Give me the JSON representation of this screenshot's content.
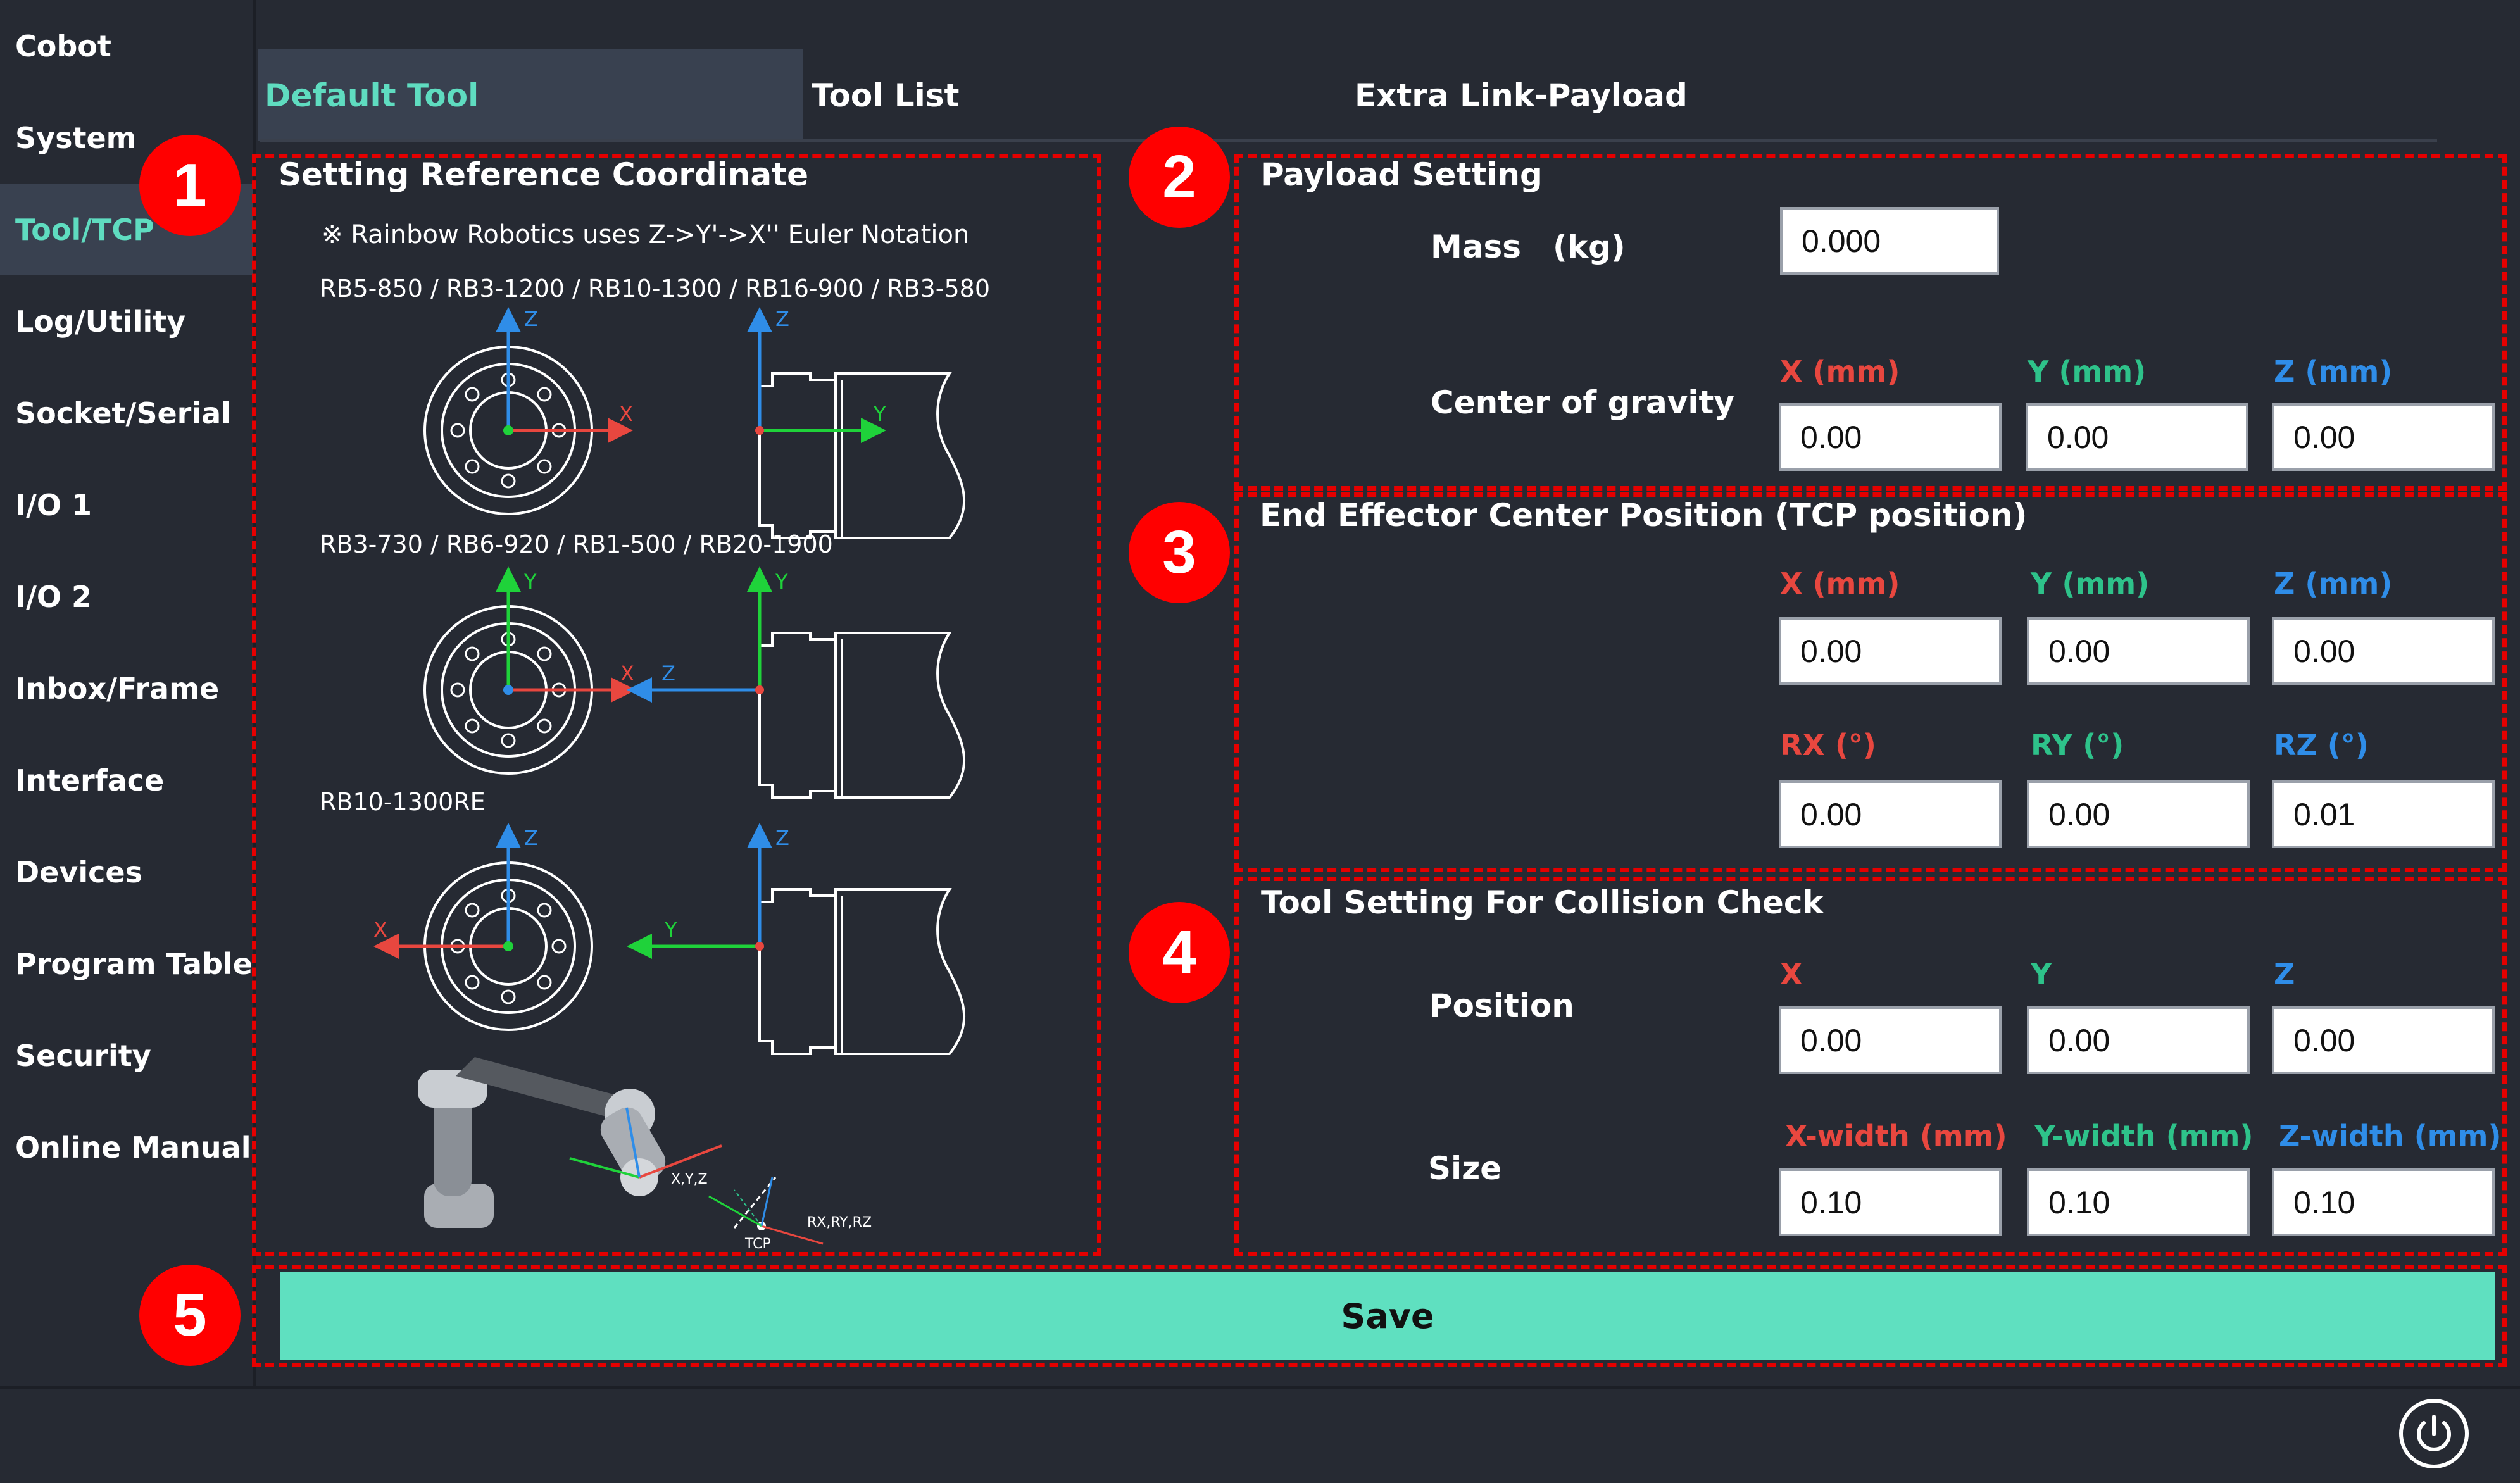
{
  "sidebar": {
    "items": [
      {
        "label": "Cobot"
      },
      {
        "label": "System"
      },
      {
        "label": "Tool/TCP"
      },
      {
        "label": "Log/Utility"
      },
      {
        "label": "Socket/Serial"
      },
      {
        "label": "I/O 1"
      },
      {
        "label": "I/O 2"
      },
      {
        "label": "Inbox/Frame"
      },
      {
        "label": "Interface"
      },
      {
        "label": "Devices"
      },
      {
        "label": "Program Table"
      },
      {
        "label": "Security"
      },
      {
        "label": "Online Manual"
      }
    ],
    "active_index": 2
  },
  "tabs": [
    {
      "label": "Default Tool"
    },
    {
      "label": "Tool List"
    },
    {
      "label": "Extra Link-Payload"
    }
  ],
  "markers": [
    "1",
    "2",
    "3",
    "4",
    "5"
  ],
  "reference": {
    "title": "Setting Reference Coordinate",
    "note": "※ Rainbow Robotics uses Z->Y'->X'' Euler Notation",
    "group1": "RB5-850 / RB3-1200 / RB10-1300 / RB16-900 / RB3-580",
    "group2": "RB3-730 / RB6-920 / RB1-500 / RB20-1900",
    "group3": "RB10-1300RE",
    "axis_x": "X",
    "axis_y": "Y",
    "axis_z": "Z",
    "fig_xyz": "X,Y,Z",
    "fig_rxyz": "RX,RY,RZ",
    "fig_tcp": "TCP"
  },
  "payload": {
    "title": "Payload Setting",
    "mass_label": "Mass　(kg)",
    "mass_value": "0.000",
    "cog_label": "Center of gravity",
    "x_label": "X (mm)",
    "y_label": "Y (mm)",
    "z_label": "Z (mm)",
    "x_value": "0.00",
    "y_value": "0.00",
    "z_value": "0.00"
  },
  "tcp": {
    "title": "End Effector Center Position (TCP position)",
    "x_label": "X (mm)",
    "y_label": "Y (mm)",
    "z_label": "Z (mm)",
    "x_value": "0.00",
    "y_value": "0.00",
    "z_value": "0.00",
    "rx_label": "RX (°)",
    "ry_label": "RY (°)",
    "rz_label": "RZ (°)",
    "rx_value": "0.00",
    "ry_value": "0.00",
    "rz_value": "0.01"
  },
  "collision": {
    "title": "Tool Setting For Collision Check",
    "position_label": "Position",
    "x_label": "X",
    "y_label": "Y",
    "z_label": "Z",
    "px": "0.00",
    "py": "0.00",
    "pz": "0.00",
    "size_label": "Size",
    "xw_label": "X-width (mm)",
    "yw_label": "Y-width (mm)",
    "zw_label": "Z-width (mm)",
    "sx": "0.10",
    "sy": "0.10",
    "sz": "0.10"
  },
  "save_label": "Save",
  "colors": {
    "accent": "#5fdcc0",
    "save": "#5fe0c0",
    "marker": "#ff0000",
    "x": "#e8473f",
    "y": "#2ec28a",
    "z": "#2f8de8"
  },
  "icons": {
    "power": "power-icon"
  }
}
